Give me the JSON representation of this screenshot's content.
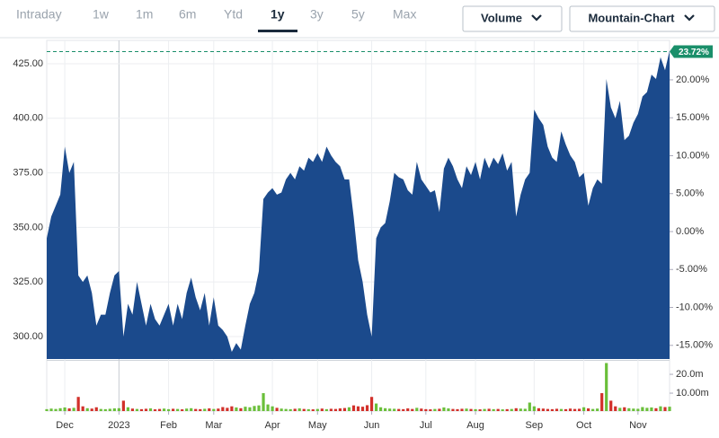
{
  "toolbar": {
    "ranges": [
      "Intraday",
      "1w",
      "1m",
      "6m",
      "Ytd",
      "1y",
      "3y",
      "5y",
      "Max"
    ],
    "selected": 5,
    "dropdowns": [
      "Volume",
      "Mountain-Chart"
    ]
  },
  "chart_data": {
    "type": "area",
    "color": "#1b4a8c",
    "categories": [
      null,
      null,
      null,
      null,
      "Dec",
      null,
      null,
      null,
      null,
      null,
      null,
      null,
      null,
      null,
      null,
      null,
      "2023",
      null,
      null,
      null,
      null,
      null,
      null,
      null,
      null,
      null,
      null,
      "Feb",
      null,
      null,
      null,
      null,
      null,
      null,
      null,
      null,
      null,
      "Mar",
      null,
      null,
      null,
      null,
      null,
      null,
      null,
      null,
      null,
      null,
      null,
      null,
      "Apr",
      null,
      null,
      null,
      null,
      null,
      null,
      null,
      null,
      null,
      "May",
      null,
      null,
      null,
      null,
      null,
      null,
      null,
      null,
      null,
      null,
      null,
      "Jun",
      null,
      null,
      null,
      null,
      null,
      null,
      null,
      null,
      null,
      null,
      null,
      "Jul",
      null,
      null,
      null,
      null,
      null,
      null,
      null,
      null,
      null,
      null,
      "Aug",
      null,
      null,
      null,
      null,
      null,
      null,
      null,
      null,
      null,
      null,
      null,
      null,
      "Sep",
      null,
      null,
      null,
      null,
      null,
      null,
      null,
      null,
      null,
      null,
      "Oct",
      null,
      null,
      null,
      null,
      null,
      null,
      null,
      null,
      null,
      null,
      null,
      "Nov",
      null,
      null,
      null,
      null,
      null,
      null,
      null
    ],
    "values": [
      345,
      355,
      360,
      365,
      387,
      375,
      380,
      328,
      325,
      328,
      320,
      305,
      310,
      310,
      320,
      328,
      330,
      300,
      315,
      310,
      325,
      315,
      305,
      315,
      308,
      305,
      310,
      315,
      305,
      315,
      308,
      320,
      327,
      318,
      312,
      320,
      305,
      318,
      305,
      303,
      300,
      293,
      297,
      294,
      305,
      315,
      320,
      330,
      363,
      366,
      368,
      365,
      366,
      372,
      375,
      372,
      378,
      376,
      382,
      380,
      384,
      380,
      387,
      383,
      380,
      378,
      372,
      372,
      355,
      335,
      325,
      310,
      300,
      345,
      350,
      352,
      362,
      375,
      373,
      372,
      367,
      365,
      380,
      372,
      369,
      366,
      367,
      357,
      377,
      382,
      378,
      372,
      368,
      378,
      374,
      380,
      372,
      382,
      377,
      382,
      379,
      384,
      376,
      380,
      355,
      365,
      372,
      375,
      404,
      400,
      397,
      387,
      382,
      380,
      394,
      388,
      383,
      380,
      373,
      375,
      360,
      368,
      372,
      370,
      418,
      405,
      400,
      408,
      390,
      392,
      398,
      402,
      410,
      412,
      420,
      418,
      428,
      422,
      431
    ],
    "ylim": [
      289.7,
      435.7
    ],
    "yticks": [
      {
        "value": 300,
        "label": "300.00"
      },
      {
        "value": 325,
        "label": "325.00"
      },
      {
        "value": 350,
        "label": "350.00"
      },
      {
        "value": 375,
        "label": "375.00"
      },
      {
        "value": 400,
        "label": "400.00"
      },
      {
        "value": 425,
        "label": "425.00"
      }
    ],
    "y2lim": [
      -16.8,
      25.2
    ],
    "y2ticks": [
      {
        "value": 20,
        "label": "20.00%"
      },
      {
        "value": 15,
        "label": "15.00%"
      },
      {
        "value": 10,
        "label": "10.00%"
      },
      {
        "value": 5,
        "label": "5.00%"
      },
      {
        "value": 0,
        "label": "0.00%"
      },
      {
        "value": -5,
        "label": "-5.00%"
      },
      {
        "value": -10,
        "label": "-10.00%"
      },
      {
        "value": -15,
        "label": "-15.00%"
      }
    ],
    "annotation": {
      "value": 23.72,
      "label": "23.72%",
      "color": "#1a8f6a"
    },
    "grid": true,
    "volume": {
      "up_color": "#6abf3a",
      "down_color": "#d2302a",
      "values": [
        1.5,
        1.8,
        1.6,
        2.0,
        2.4,
        1.9,
        2.2,
        8.0,
        3.0,
        2.0,
        1.8,
        2.5,
        1.6,
        1.5,
        1.7,
        1.9,
        2.0,
        6.0,
        2.5,
        1.8,
        1.6,
        1.5,
        1.7,
        1.9,
        1.4,
        1.6,
        1.8,
        1.5,
        1.7,
        1.6,
        1.4,
        1.8,
        2.0,
        1.6,
        1.5,
        1.7,
        1.9,
        1.6,
        1.8,
        2.6,
        2.2,
        3.0,
        2.4,
        2.0,
        2.8,
        2.5,
        3.2,
        3.5,
        10.0,
        4.0,
        3.0,
        2.2,
        1.8,
        1.6,
        1.5,
        1.7,
        1.9,
        1.6,
        1.5,
        1.4,
        1.6,
        1.8,
        1.5,
        1.7,
        1.6,
        1.9,
        2.1,
        2.5,
        3.5,
        3.0,
        2.8,
        3.6,
        8.0,
        4.5,
        2.5,
        2.0,
        1.8,
        1.7,
        1.6,
        1.5,
        1.9,
        1.6,
        2.2,
        1.8,
        1.5,
        1.4,
        1.6,
        1.7,
        2.4,
        1.9,
        1.6,
        1.5,
        1.7,
        1.8,
        1.6,
        1.5,
        1.4,
        1.6,
        1.7,
        1.5,
        1.6,
        1.4,
        1.5,
        1.6,
        2.0,
        1.8,
        1.7,
        5.0,
        3.0,
        2.0,
        1.8,
        1.6,
        1.5,
        1.7,
        1.6,
        1.5,
        1.8,
        1.6,
        1.7,
        2.5,
        1.9,
        1.6,
        1.8,
        10.0,
        26.0,
        6.0,
        3.0,
        2.2,
        2.5,
        2.0,
        1.8,
        1.7,
        2.6,
        2.2,
        2.4,
        2.0,
        3.0,
        2.6,
        2.8
      ],
      "ylim": [
        0.48,
        26.7
      ],
      "yticks": [
        {
          "value": 20,
          "label": "20.0m"
        },
        {
          "value": 10,
          "label": "10.00m"
        }
      ]
    }
  }
}
